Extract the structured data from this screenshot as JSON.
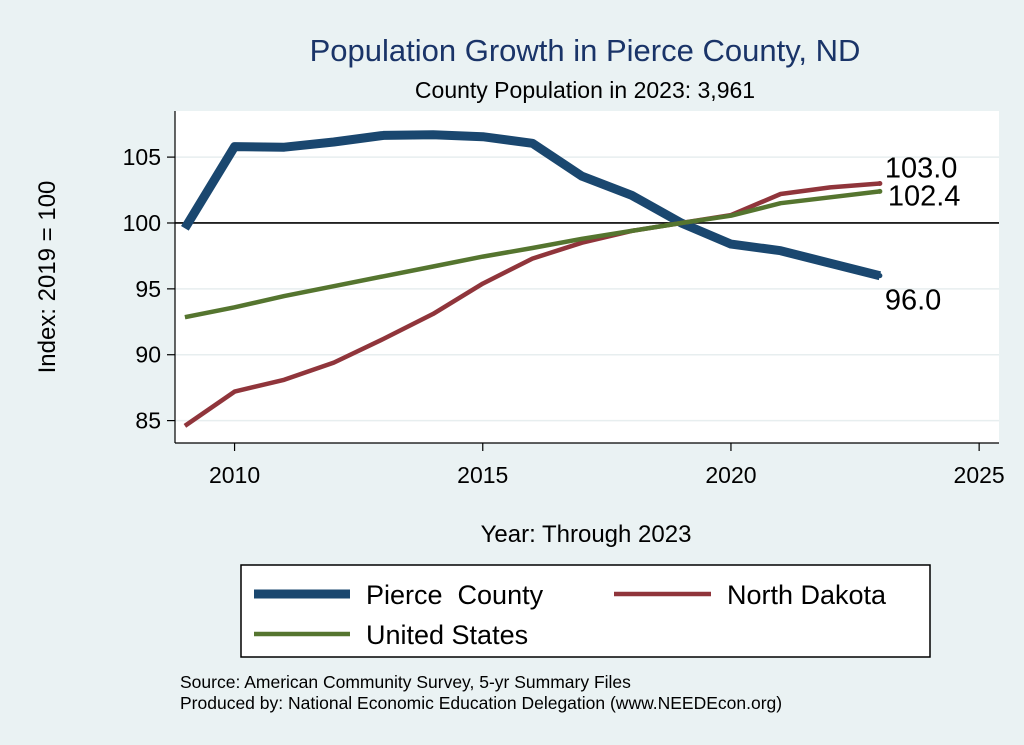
{
  "chart_data": {
    "type": "line",
    "title": "Population Growth in Pierce County, ND",
    "subtitle": "County Population in 2023: 3,961",
    "xlabel": "Year: Through 2023",
    "ylabel": "Index: 2019 = 100",
    "xlim": [
      2008.8,
      2025.4
    ],
    "ylim": [
      83.3,
      108.5
    ],
    "x_ticks": [
      2010,
      2015,
      2020,
      2025
    ],
    "y_ticks": [
      85,
      90,
      95,
      100,
      105
    ],
    "reference_line": 100,
    "x": [
      2009,
      2010,
      2011,
      2012,
      2013,
      2014,
      2015,
      2016,
      2017,
      2018,
      2019,
      2020,
      2021,
      2022,
      2023
    ],
    "series": [
      {
        "name": "Pierce  County",
        "color": "#1a476f",
        "values": [
          99.6,
          105.8,
          105.75,
          106.15,
          106.65,
          106.7,
          106.55,
          106.05,
          103.55,
          102.1,
          100.0,
          98.4,
          97.9,
          96.95,
          96.0
        ],
        "end_label": "96.0"
      },
      {
        "name": "North Dakota",
        "color": "#90353b",
        "values": [
          84.6,
          87.2,
          88.1,
          89.4,
          91.2,
          93.1,
          95.4,
          97.3,
          98.5,
          99.4,
          100.0,
          100.6,
          102.2,
          102.7,
          103.0
        ],
        "end_label": "103.0"
      },
      {
        "name": "United States",
        "color": "#55752f",
        "values": [
          92.85,
          93.6,
          94.45,
          95.2,
          95.95,
          96.7,
          97.45,
          98.1,
          98.8,
          99.4,
          100.0,
          100.55,
          101.5,
          101.95,
          102.4
        ],
        "end_label": "102.4"
      }
    ]
  },
  "source_lines": [
    "Source: American Community Survey, 5-yr Summary Files",
    "Produced by: National Economic Education Delegation (www.NEEDEcon.org)"
  ]
}
